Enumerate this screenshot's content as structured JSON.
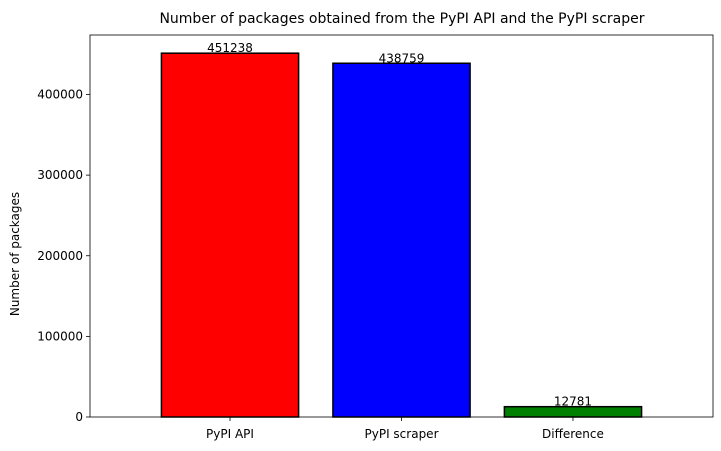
{
  "chart_data": {
    "type": "bar",
    "title": "Number of packages obtained from the PyPI API and the PyPI scraper",
    "xlabel": "",
    "ylabel": "Number of packages",
    "categories": [
      "PyPI API",
      "PyPI scraper",
      "Difference"
    ],
    "values": [
      451238,
      438759,
      12781
    ],
    "data_labels": [
      "451238",
      "438759",
      "12781"
    ],
    "colors": [
      "#ff0000",
      "#0000ff",
      "#008000"
    ],
    "edge_color": "#000000",
    "ylim": [
      0,
      473800
    ],
    "yticks": [
      0,
      100000,
      200000,
      300000,
      400000
    ],
    "ytick_labels": [
      "0",
      "100000",
      "200000",
      "300000",
      "400000"
    ],
    "grid": false,
    "legend": false
  }
}
